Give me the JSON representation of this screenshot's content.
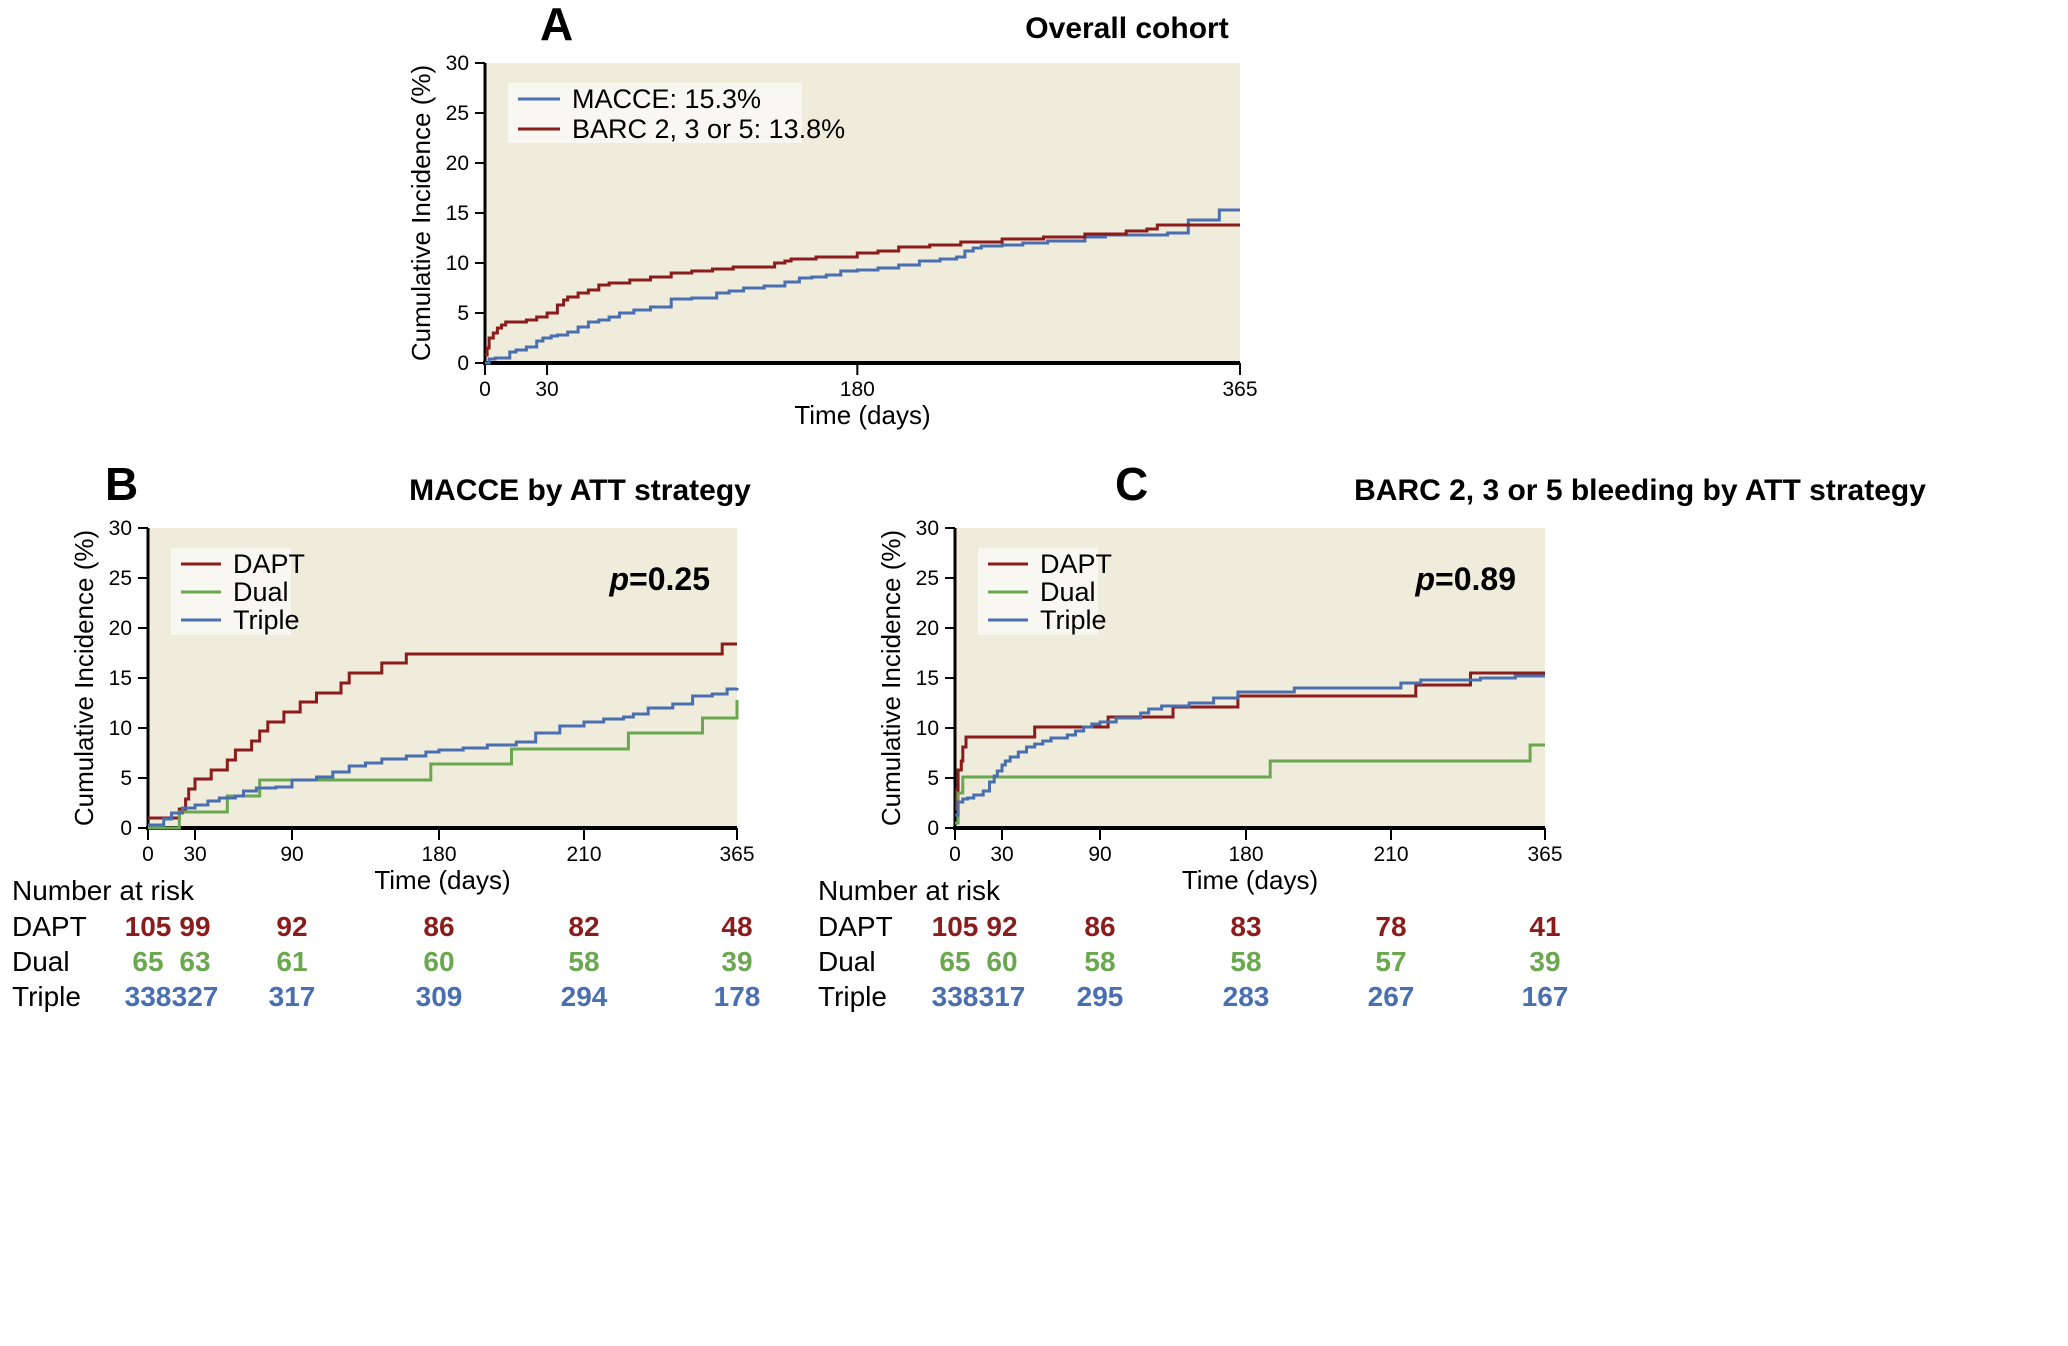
{
  "colors": {
    "plot_bg": "#f0ecdc",
    "legend_bg": "#f8f7f1",
    "macce": "#4a6fb0",
    "barc": "#8b1c1c",
    "dapt": "#8b1c1c",
    "dual": "#6aa84f",
    "triple": "#4a6fb0"
  },
  "chart_data": [
    {
      "id": "A",
      "type": "line",
      "step": true,
      "panel_letter": "A",
      "title": "Overall cohort",
      "xlabel": "Time (days)",
      "ylabel": "Cumulative Incidence (%)",
      "xlim": [
        0,
        365
      ],
      "ylim": [
        0,
        30
      ],
      "xscale": "linear",
      "xticks": [
        0,
        30,
        180,
        365
      ],
      "yticks": [
        0,
        5,
        10,
        15,
        20,
        25,
        30
      ],
      "legend_position": "top-left",
      "series": [
        {
          "name": "MACCE: 15.3%",
          "color_key": "macce",
          "x": [
            0,
            2,
            5,
            12,
            15,
            20,
            25,
            28,
            32,
            35,
            40,
            45,
            50,
            55,
            60,
            65,
            72,
            80,
            90,
            100,
            108,
            112,
            118,
            125,
            135,
            145,
            152,
            158,
            165,
            172,
            180,
            190,
            200,
            210,
            220,
            228,
            232,
            236,
            240,
            250,
            260,
            272,
            290,
            300,
            330,
            340,
            355,
            365
          ],
          "y": [
            0,
            0.4,
            0.5,
            1.1,
            1.3,
            1.6,
            2.2,
            2.5,
            2.7,
            2.8,
            3.1,
            3.6,
            4.1,
            4.3,
            4.6,
            5.0,
            5.3,
            5.6,
            6.4,
            6.5,
            6.5,
            7.0,
            7.2,
            7.5,
            7.7,
            8.1,
            8.5,
            8.6,
            8.8,
            9.2,
            9.3,
            9.5,
            9.8,
            10.2,
            10.4,
            10.6,
            11.2,
            11.5,
            11.7,
            11.8,
            12.0,
            12.2,
            12.6,
            12.8,
            13.0,
            14.3,
            15.3,
            15.3
          ],
          "final_label": "15.3%"
        },
        {
          "name": "BARC 2, 3 or 5: 13.8%",
          "color_key": "barc",
          "x": [
            0,
            1,
            2,
            4,
            6,
            8,
            10,
            12,
            20,
            25,
            30,
            35,
            38,
            40,
            45,
            50,
            55,
            60,
            70,
            80,
            90,
            100,
            110,
            120,
            130,
            140,
            145,
            148,
            160,
            180,
            190,
            200,
            215,
            230,
            250,
            270,
            290,
            310,
            320,
            325,
            365
          ],
          "y": [
            0.8,
            1.5,
            2.5,
            3.0,
            3.5,
            3.8,
            4.1,
            4.1,
            4.3,
            4.6,
            5.0,
            5.8,
            6.3,
            6.6,
            7.0,
            7.3,
            7.8,
            8.0,
            8.3,
            8.6,
            9.0,
            9.2,
            9.4,
            9.6,
            9.6,
            10.0,
            10.2,
            10.4,
            10.6,
            11.0,
            11.2,
            11.6,
            11.8,
            12.1,
            12.4,
            12.6,
            12.9,
            13.2,
            13.4,
            13.8,
            13.8
          ],
          "final_label": "13.8%"
        }
      ]
    },
    {
      "id": "B",
      "type": "line",
      "step": true,
      "panel_letter": "B",
      "title": "MACCE by ATT strategy",
      "xlabel": "Time (days)",
      "ylabel": "Cumulative Incidence (%)",
      "xlim": [
        0,
        365
      ],
      "ylim": [
        0,
        30
      ],
      "xscale": "piecewise",
      "xticks": [
        0,
        30,
        90,
        180,
        210,
        365
      ],
      "yticks": [
        0,
        5,
        10,
        15,
        20,
        25,
        30
      ],
      "legend_position": "top-left",
      "annotation": {
        "prefix": "p",
        "text": "=0.25"
      },
      "series": [
        {
          "name": "DAPT",
          "color_key": "dapt",
          "x": [
            0,
            20,
            24,
            26,
            30,
            40,
            50,
            55,
            65,
            70,
            75,
            85,
            95,
            105,
            120,
            125,
            145,
            160,
            170,
            190,
            200,
            350,
            365
          ],
          "y": [
            1.0,
            1.9,
            2.9,
            3.9,
            4.9,
            5.8,
            6.8,
            7.8,
            8.7,
            9.7,
            10.6,
            11.6,
            12.6,
            13.5,
            14.5,
            15.5,
            16.5,
            17.4,
            17.4,
            17.4,
            17.4,
            18.4,
            18.4
          ],
          "final_label": "18.4%"
        },
        {
          "name": "Dual",
          "color_key": "dual",
          "x": [
            0,
            20,
            50,
            70,
            130,
            175,
            195,
            255,
            330,
            365
          ],
          "y": [
            0,
            1.6,
            3.2,
            4.8,
            4.8,
            6.4,
            7.9,
            9.5,
            11.0,
            12.8
          ],
          "final_label": "12.8%"
        },
        {
          "name": "Triple",
          "color_key": "triple",
          "x": [
            0,
            10,
            15,
            22,
            30,
            38,
            45,
            55,
            60,
            68,
            80,
            90,
            105,
            115,
            125,
            135,
            145,
            160,
            172,
            180,
            185,
            190,
            196,
            200,
            205,
            210,
            230,
            250,
            260,
            275,
            300,
            320,
            340,
            355,
            365
          ],
          "y": [
            0.3,
            0.9,
            1.5,
            2.0,
            2.3,
            2.7,
            3.0,
            3.2,
            3.7,
            4.0,
            4.1,
            4.8,
            5.1,
            5.6,
            6.2,
            6.5,
            6.9,
            7.2,
            7.6,
            7.8,
            8.0,
            8.3,
            8.6,
            9.5,
            10.2,
            10.6,
            10.9,
            11.1,
            11.4,
            12.0,
            12.4,
            13.2,
            13.4,
            13.9,
            14.0
          ],
          "final_label": "14.0%"
        }
      ],
      "risk_table": {
        "header": "Number at risk",
        "timepoints": [
          0,
          30,
          90,
          180,
          210,
          365
        ],
        "rows": [
          {
            "label": "DAPT",
            "color_key": "dapt",
            "values": [
              105,
              99,
              92,
              86,
              82,
              48
            ]
          },
          {
            "label": "Dual",
            "color_key": "dual",
            "values": [
              65,
              63,
              61,
              60,
              58,
              39
            ]
          },
          {
            "label": "Triple",
            "color_key": "triple",
            "values": [
              338,
              327,
              317,
              309,
              294,
              178
            ]
          }
        ]
      }
    },
    {
      "id": "C",
      "type": "line",
      "step": true,
      "panel_letter": "C",
      "title": "BARC 2, 3 or 5 bleeding by ATT strategy",
      "xlabel": "Time (days)",
      "ylabel": "Cumulative Incidence (%)",
      "xlim": [
        0,
        365
      ],
      "ylim": [
        0,
        30
      ],
      "xscale": "piecewise",
      "xticks": [
        0,
        30,
        90,
        180,
        210,
        365
      ],
      "yticks": [
        0,
        5,
        10,
        15,
        20,
        25,
        30
      ],
      "legend_position": "top-left",
      "annotation": {
        "prefix": "p",
        "text": "=0.89"
      },
      "series": [
        {
          "name": "DAPT",
          "color_key": "dapt",
          "x": [
            0,
            1,
            2,
            4,
            5,
            7,
            50,
            95,
            135,
            175,
            235,
            290,
            365
          ],
          "y": [
            1.9,
            3.8,
            5.8,
            6.7,
            8.1,
            9.1,
            10.1,
            11.1,
            12.1,
            13.2,
            14.3,
            15.5,
            15.5
          ],
          "final_label": "15.5%"
        },
        {
          "name": "Dual",
          "color_key": "dual",
          "x": [
            0,
            2,
            5,
            185,
            350,
            365
          ],
          "y": [
            0.5,
            3.5,
            5.1,
            6.7,
            8.3,
            8.3
          ],
          "final_label": "8.3%"
        },
        {
          "name": "Triple",
          "color_key": "triple",
          "x": [
            0,
            2,
            5,
            8,
            12,
            18,
            22,
            25,
            27,
            30,
            32,
            35,
            40,
            45,
            50,
            55,
            60,
            70,
            75,
            80,
            85,
            90,
            100,
            115,
            120,
            128,
            145,
            160,
            175,
            190,
            220,
            240,
            300,
            335,
            345,
            365
          ],
          "y": [
            1.3,
            2.6,
            2.9,
            3.0,
            3.3,
            3.7,
            4.6,
            5.2,
            5.7,
            6.3,
            6.7,
            7.1,
            7.6,
            8.1,
            8.4,
            8.7,
            9.0,
            9.3,
            9.7,
            10.1,
            10.4,
            10.6,
            11.0,
            11.5,
            11.9,
            12.2,
            12.5,
            13.0,
            13.6,
            14.0,
            14.5,
            14.8,
            15.0,
            15.2,
            15.2,
            15.2
          ],
          "final_label": "15.2%"
        }
      ],
      "risk_table": {
        "header": "Number at risk",
        "timepoints": [
          0,
          30,
          90,
          180,
          210,
          365
        ],
        "rows": [
          {
            "label": "DAPT",
            "color_key": "dapt",
            "values": [
              105,
              92,
              86,
              83,
              78,
              41
            ]
          },
          {
            "label": "Dual",
            "color_key": "dual",
            "values": [
              65,
              60,
              58,
              58,
              57,
              39
            ]
          },
          {
            "label": "Triple",
            "color_key": "triple",
            "values": [
              338,
              317,
              295,
              283,
              267,
              167
            ]
          }
        ]
      }
    }
  ]
}
